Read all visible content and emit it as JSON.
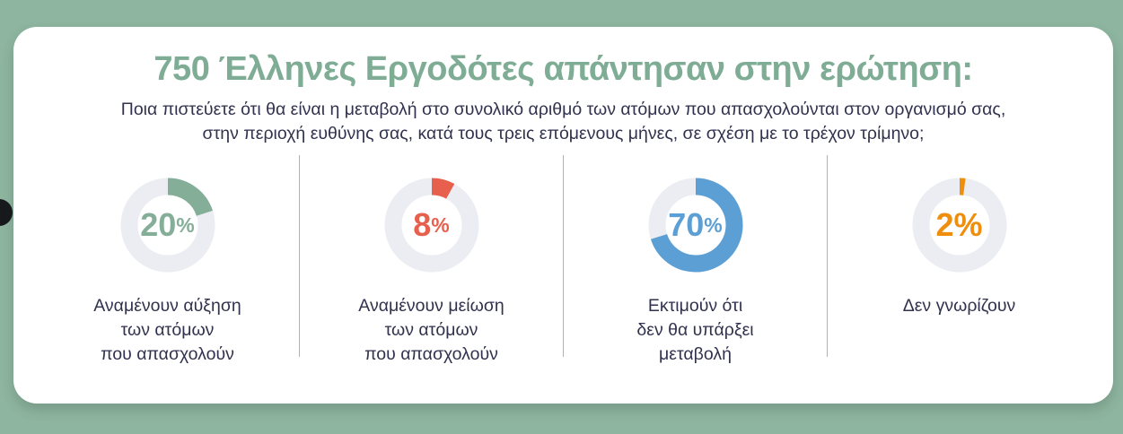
{
  "header": {
    "title": "750 Έλληνες Εργοδότες απάντησαν στην ερώτηση:",
    "subtitle_lines": [
      "Ποια πιστεύετε ότι θα είναι η μεταβολή στο συνολικό αριθμό των ατόμων που απασχολούνται στον οργανισμό σας,",
      "στην περιοχή ευθύνης σας, κατά τους τρεις επόμενους μήνες, σε σχέση με το τρέχον τρίμηνο;"
    ]
  },
  "chart_data": {
    "type": "pie",
    "variant": "donut-small-multiples",
    "units": "%",
    "sample_size": 750,
    "title": "750 Έλληνες Εργοδότες απάντησαν στην ερώτηση:",
    "question": "Ποια πιστεύετε ότι θα είναι η μεταβολή στο συνολικό αριθμό των ατόμων που απασχολούνται στον οργανισμό σας, στην περιοχή ευθύνης σας, κατά τους τρεις επόμενους μήνες, σε σχέση με το τρέχον τρίμηνο;",
    "track_color": "#EBEDF2",
    "segments": [
      {
        "value": 20,
        "display": "20",
        "unit": "%",
        "unit_small": true,
        "color": "#84AE97",
        "label_lines": [
          "Αναμένουν αύξηση",
          "των ατόμων",
          "που απασχολούν"
        ]
      },
      {
        "value": 8,
        "display": "8",
        "unit": "%",
        "unit_small": true,
        "color": "#E7604D",
        "label_lines": [
          "Αναμένουν μείωση",
          "των ατόμων",
          "που απασχολούν"
        ]
      },
      {
        "value": 70,
        "display": "70",
        "unit": "%",
        "unit_small": true,
        "color": "#5C9FD4",
        "label_lines": [
          "Εκτιμούν ότι",
          "δεν θα υπάρξει",
          "μεταβολή"
        ]
      },
      {
        "value": 2,
        "display": "2",
        "unit": "%",
        "unit_small": false,
        "color": "#EF8D0C",
        "label_lines": [
          "Δεν γνωρίζουν"
        ]
      }
    ]
  },
  "colors": {
    "background": "#8EB5A0",
    "card": "#FFFFFF",
    "title": "#7EAC94",
    "text": "#31324E",
    "divider": "#A9B2BE",
    "edge_dot": "#17191D"
  }
}
